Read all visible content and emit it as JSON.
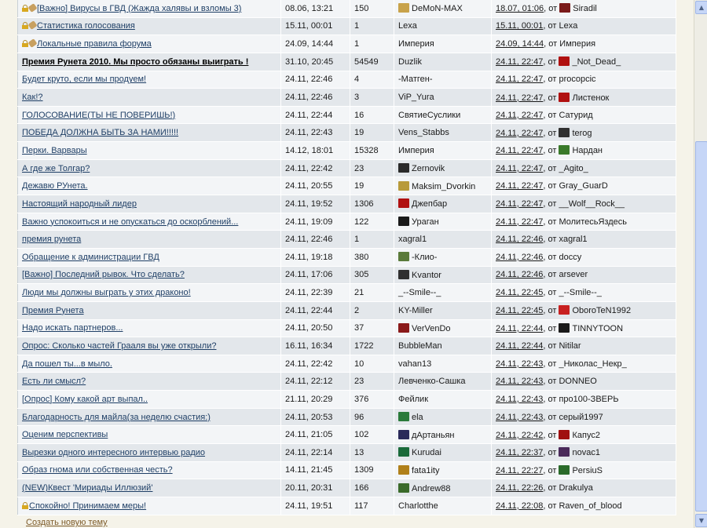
{
  "rows": [
    {
      "icons": [
        "lock",
        "clip"
      ],
      "topic": "[Важно] Вирусы в ГВД (Жажда халявы и взломы 3)",
      "bold": false,
      "date": "08.06, 13:21",
      "count": "150",
      "author": "DeMoN-MAX",
      "author_avatar": "#c8a24a",
      "last_date": "18.07, 01:06",
      "last_from": "от",
      "last_user": "Siradil",
      "last_avatar": "#7a1a1a"
    },
    {
      "icons": [
        "lock",
        "clip"
      ],
      "topic": "Статистика голосования",
      "bold": false,
      "date": "15.11, 00:01",
      "count": "1",
      "author": "Lexa",
      "author_avatar": "",
      "last_date": "15.11, 00:01",
      "last_from": "от",
      "last_user": "Lexa",
      "last_avatar": ""
    },
    {
      "icons": [
        "lock",
        "clip"
      ],
      "topic": "Локальные правила форума",
      "bold": false,
      "date": "24.09, 14:44",
      "count": "1",
      "author": "Империя",
      "author_avatar": "",
      "last_date": "24.09, 14:44",
      "last_from": "от",
      "last_user": "Империя",
      "last_avatar": ""
    },
    {
      "icons": [],
      "topic": "Премия Рунета 2010. Мы просто обязаны выиграть !",
      "bold": true,
      "date": "31.10, 20:45",
      "count": "54549",
      "author": "Duzlik",
      "author_avatar": "",
      "last_date": "24.11, 22:47",
      "last_from": "от",
      "last_user": "_Not_Dead_",
      "last_avatar": "#b01010"
    },
    {
      "icons": [],
      "topic": "Будет круто, если мы продуем!",
      "bold": false,
      "date": "24.11, 22:46",
      "count": "4",
      "author": "-Матген-",
      "author_avatar": "",
      "last_date": "24.11, 22:47",
      "last_from": "от",
      "last_user": "procopcic",
      "last_avatar": ""
    },
    {
      "icons": [],
      "topic": "Как!?",
      "bold": false,
      "date": "24.11, 22:46",
      "count": "3",
      "author": "ViP_Yura",
      "author_avatar": "",
      "last_date": "24.11, 22:47",
      "last_from": "от",
      "last_user": "Листенок",
      "last_avatar": "#b01010"
    },
    {
      "icons": [],
      "topic": "ГОЛОСОВАНИЕ(ТЫ НЕ ПОВЕРИШЬ!)",
      "bold": false,
      "date": "24.11, 22:44",
      "count": "16",
      "author": "СвятиеСуслики",
      "author_avatar": "",
      "last_date": "24.11, 22:47",
      "last_from": "от",
      "last_user": "Сатурид",
      "last_avatar": ""
    },
    {
      "icons": [],
      "topic": "ПОБЕДА ДОЛЖНА БЫТЬ ЗА НАМИ!!!!!",
      "bold": false,
      "date": "24.11, 22:43",
      "count": "19",
      "author": "Vens_Stabbs",
      "author_avatar": "",
      "last_date": "24.11, 22:47",
      "last_from": "от",
      "last_user": "terog",
      "last_avatar": "#303030"
    },
    {
      "icons": [],
      "topic": "Перки. Варвары",
      "bold": false,
      "date": "14.12, 18:01",
      "count": "15328",
      "author": "Империя",
      "author_avatar": "",
      "last_date": "24.11, 22:47",
      "last_from": "от",
      "last_user": "Нардан",
      "last_avatar": "#3a7a2a"
    },
    {
      "icons": [],
      "topic": "А где же Толгар?",
      "bold": false,
      "date": "24.11, 22:42",
      "count": "23",
      "author": "Zernovik",
      "author_avatar": "#2a2a2a",
      "last_date": "24.11, 22:47",
      "last_from": "от",
      "last_user": "_Agito_",
      "last_avatar": ""
    },
    {
      "icons": [],
      "topic": "Дежавю РУнета.",
      "bold": false,
      "date": "24.11, 20:55",
      "count": "19",
      "author": "Maksim_Dvorkin",
      "author_avatar": "#b89a3a",
      "last_date": "24.11, 22:47",
      "last_from": "от",
      "last_user": "Gray_GuarD",
      "last_avatar": ""
    },
    {
      "icons": [],
      "topic": "Настоящий народный лидер",
      "bold": false,
      "date": "24.11, 19:52",
      "count": "1306",
      "author": "Джепбар",
      "author_avatar": "#b01010",
      "last_date": "24.11, 22:47",
      "last_from": "от",
      "last_user": "__Wolf__Rock__",
      "last_avatar": ""
    },
    {
      "icons": [],
      "topic": "Важно успокоиться и не опускаться до оскорблений...",
      "bold": false,
      "date": "24.11, 19:09",
      "count": "122",
      "author": "Ураган",
      "author_avatar": "#1a1a1a",
      "last_date": "24.11, 22:47",
      "last_from": "от",
      "last_user": "МолитесьЯздесь",
      "last_avatar": ""
    },
    {
      "icons": [],
      "topic": "премия рунета",
      "bold": false,
      "date": "24.11, 22:46",
      "count": "1",
      "author": "xagral1",
      "author_avatar": "",
      "last_date": "24.11, 22:46",
      "last_from": "от",
      "last_user": "xagral1",
      "last_avatar": ""
    },
    {
      "icons": [],
      "topic": "Обращение к администрации ГВД",
      "bold": false,
      "date": "24.11, 19:18",
      "count": "380",
      "author": "-Клио-",
      "author_avatar": "#5a7a3a",
      "last_date": "24.11, 22:46",
      "last_from": "от",
      "last_user": "doccy",
      "last_avatar": ""
    },
    {
      "icons": [],
      "topic": "[Важно] Последний рывок. Что сделать?",
      "bold": false,
      "date": "24.11, 17:06",
      "count": "305",
      "author": "Kvantor",
      "author_avatar": "#303030",
      "last_date": "24.11, 22:46",
      "last_from": "от",
      "last_user": "arsever",
      "last_avatar": ""
    },
    {
      "icons": [],
      "topic": "Люди мы должны выграть у этих драконо!",
      "bold": false,
      "date": "24.11, 22:39",
      "count": "21",
      "author": "_--Smile--_",
      "author_avatar": "",
      "last_date": "24.11, 22:45",
      "last_from": "от",
      "last_user": "_--Smile--_",
      "last_avatar": ""
    },
    {
      "icons": [],
      "topic": "Премия Рунета",
      "bold": false,
      "date": "24.11, 22:44",
      "count": "2",
      "author": "KY-Miller",
      "author_avatar": "",
      "last_date": "24.11, 22:45",
      "last_from": "от",
      "last_user": "OboroTeN1992",
      "last_avatar": "#c82020"
    },
    {
      "icons": [],
      "topic": "Надо искать партнеров...",
      "bold": false,
      "date": "24.11, 20:50",
      "count": "37",
      "author": "VerVenDo",
      "author_avatar": "#8a1a1a",
      "last_date": "24.11, 22:44",
      "last_from": "от",
      "last_user": "TINNYTOON",
      "last_avatar": "#1a1a1a"
    },
    {
      "icons": [],
      "topic": "Опрос: Сколько частей Грааля вы уже открыли?",
      "bold": false,
      "date": "16.11, 16:34",
      "count": "1722",
      "author": "BubbleMan",
      "author_avatar": "",
      "last_date": "24.11, 22:44",
      "last_from": "от",
      "last_user": "Nitilar",
      "last_avatar": ""
    },
    {
      "icons": [],
      "topic": "Да пошел ты...в мыло.",
      "bold": false,
      "date": "24.11, 22:42",
      "count": "10",
      "author": "vahan13",
      "author_avatar": "",
      "last_date": "24.11, 22:43",
      "last_from": "от",
      "last_user": "_Николас_Некр_",
      "last_avatar": ""
    },
    {
      "icons": [],
      "topic": "Есть ли смысл?",
      "bold": false,
      "date": "24.11, 22:12",
      "count": "23",
      "author": "Левченко-Сашка",
      "author_avatar": "",
      "last_date": "24.11, 22:43",
      "last_from": "от",
      "last_user": "DONNEO",
      "last_avatar": ""
    },
    {
      "icons": [],
      "topic": "[Опрос] Кому какой арт выпал..",
      "bold": false,
      "date": "21.11, 20:29",
      "count": "376",
      "author": "Фейлик",
      "author_avatar": "",
      "last_date": "24.11, 22:43",
      "last_from": "от",
      "last_user": "про100-ЗВЕРЬ",
      "last_avatar": ""
    },
    {
      "icons": [],
      "topic": "Благодарность для майла(за неделю счастия:)",
      "bold": false,
      "date": "24.11, 20:53",
      "count": "96",
      "author": "ela",
      "author_avatar": "#2a7a3a",
      "last_date": "24.11, 22:43",
      "last_from": "от",
      "last_user": "серый1997",
      "last_avatar": ""
    },
    {
      "icons": [],
      "topic": "Оценим перспективы",
      "bold": false,
      "date": "24.11, 21:05",
      "count": "102",
      "author": "дАртаньян",
      "author_avatar": "#2a2a5a",
      "last_date": "24.11, 22:42",
      "last_from": "от",
      "last_user": "Капус2",
      "last_avatar": "#a01010"
    },
    {
      "icons": [],
      "topic": "Вырезки одного интересного интервью радио",
      "bold": false,
      "date": "24.11, 22:14",
      "count": "13",
      "author": "Kurudai",
      "author_avatar": "#1a6a3a",
      "last_date": "24.11, 22:37",
      "last_from": "от",
      "last_user": "novac1",
      "last_avatar": "#4a2a5a"
    },
    {
      "icons": [],
      "topic": "Образ гнома или собственная честь?",
      "bold": false,
      "date": "14.11, 21:45",
      "count": "1309",
      "author": "fata1ity",
      "author_avatar": "#b0801a",
      "last_date": "24.11, 22:27",
      "last_from": "от",
      "last_user": "PersiuS",
      "last_avatar": "#2a6a2a"
    },
    {
      "icons": [],
      "topic": "(NEW)Квест 'Мириады Иллюзий'",
      "bold": false,
      "date": "20.11, 20:31",
      "count": "166",
      "author": "Andrew88",
      "author_avatar": "#3a6a2a",
      "last_date": "24.11, 22:26",
      "last_from": "от",
      "last_user": "Drakulya",
      "last_avatar": ""
    },
    {
      "icons": [
        "lock"
      ],
      "topic": "Спокойно! Принимаем меры!",
      "bold": false,
      "date": "24.11, 19:51",
      "count": "117",
      "author": "Charlotthe",
      "author_avatar": "",
      "last_date": "24.11, 22:08",
      "last_from": "от",
      "last_user": "Raven_of_blood",
      "last_avatar": ""
    }
  ],
  "footer": {
    "new_topic_label": "Создать новую тему"
  },
  "scrollbar": {
    "up_icon": "▲",
    "down_icon": "▼"
  }
}
